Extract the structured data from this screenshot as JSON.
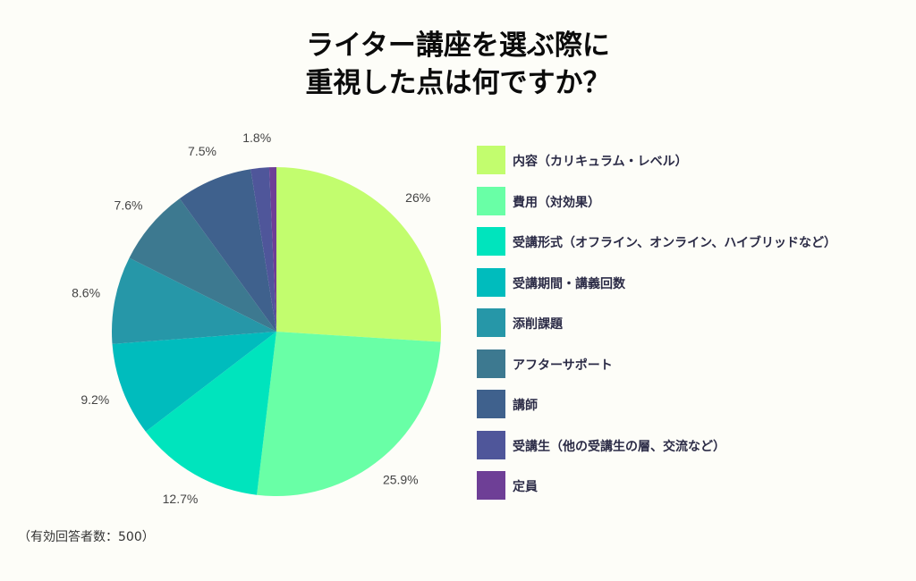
{
  "chart_data": {
    "type": "pie",
    "title_lines": [
      "ライター講座を選ぶ際に",
      "重視した点は何ですか？"
    ],
    "labels": [
      "内容（カリキュラム・レベル）",
      "費用（対効果）",
      "受講形式（オフライン、オンライン、ハイブリッドなど）",
      "受講期間・講義回数",
      "添削課題",
      "アフターサポート",
      "講師",
      "受講生（他の受講生の層、交流など）",
      "定員"
    ],
    "values": [
      26,
      25.9,
      12.7,
      9.2,
      8.6,
      7.6,
      7.5,
      1.8,
      0.7
    ],
    "value_labels": [
      "26%",
      "25.9%",
      "12.7%",
      "9.2%",
      "8.6%",
      "7.6%",
      "7.5%",
      "1.8%",
      ""
    ],
    "colors": [
      "#c2fd6e",
      "#69ffa6",
      "#00e4bd",
      "#00bcbd",
      "#2697a8",
      "#3d7990",
      "#3f618d",
      "#4f569a",
      "#6e3f96"
    ],
    "legend_position": "right",
    "start_angle": "top",
    "direction": "clockwise"
  },
  "footnote": "（有効回答者数：500）"
}
